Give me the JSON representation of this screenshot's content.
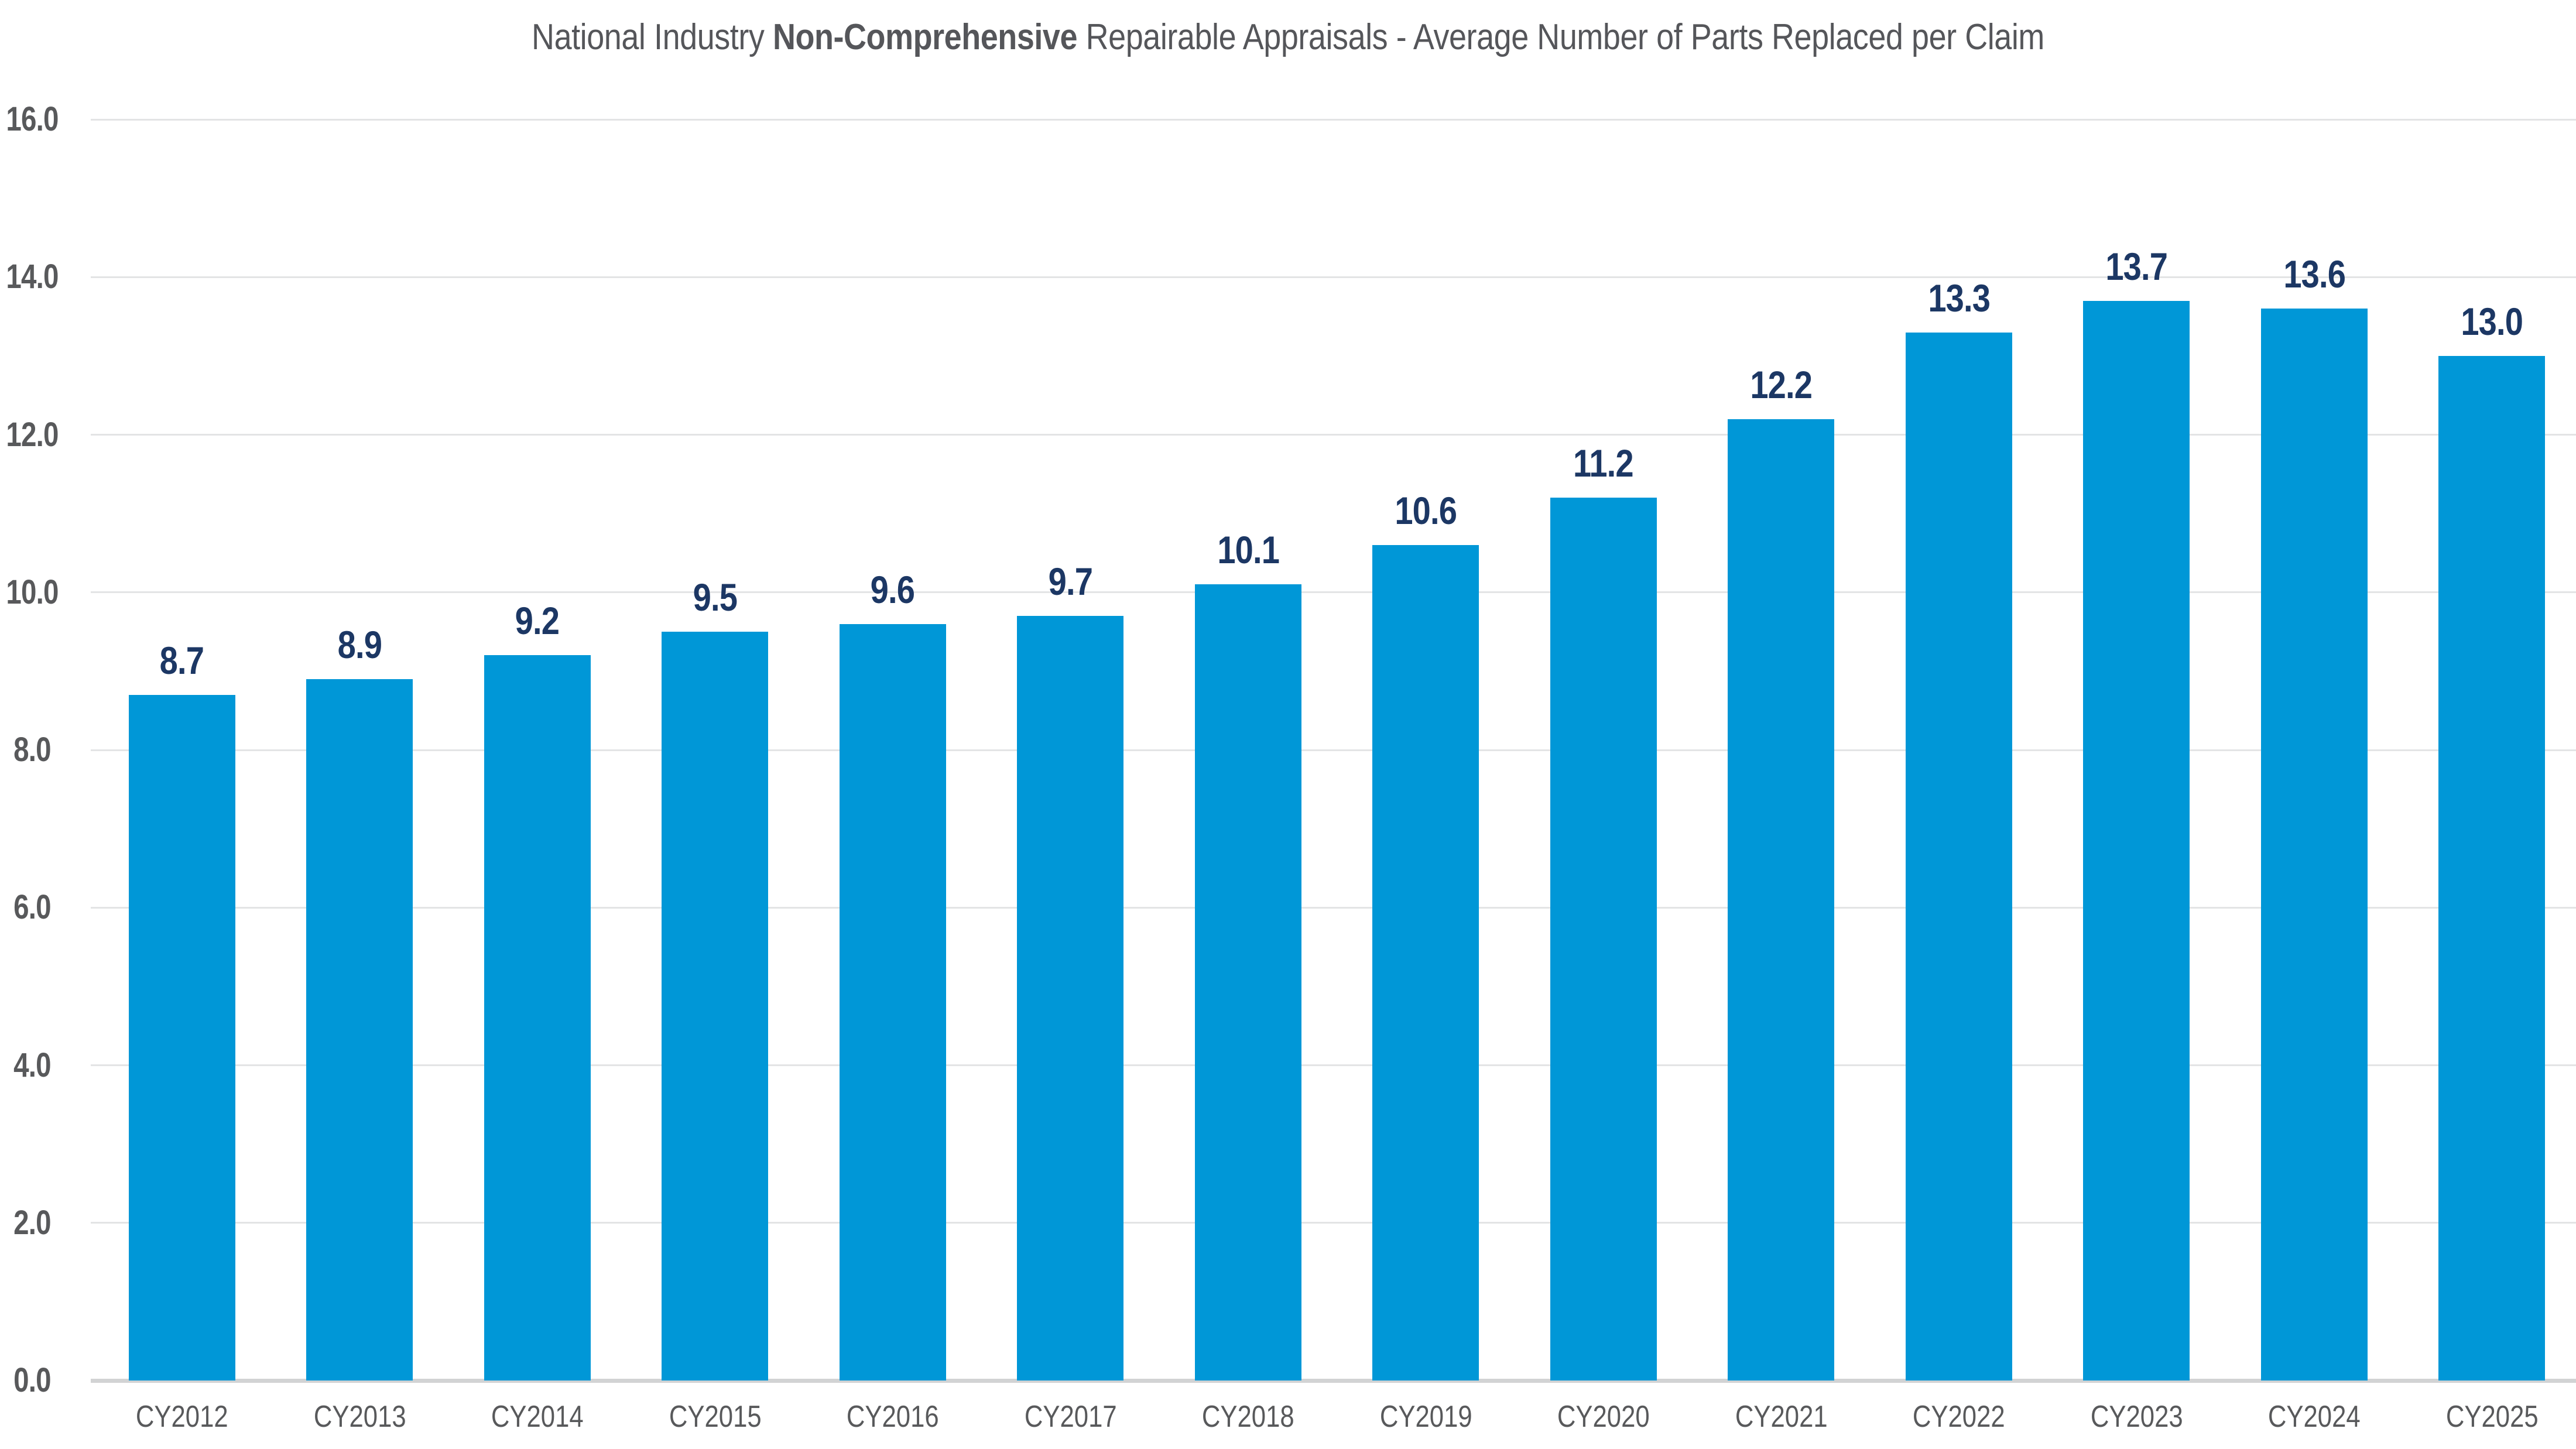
{
  "title": {
    "prefix": "National Industry ",
    "bold": "Non-Comprehensive",
    "suffix": " Repairable Appraisals - Average Number of Parts Replaced per Claim"
  },
  "chart_data": {
    "type": "bar",
    "title": "National Industry Non-Comprehensive Repairable Appraisals - Average Number of Parts Replaced per Claim",
    "categories": [
      "CY2012",
      "CY2013",
      "CY2014",
      "CY2015",
      "CY2016",
      "CY2017",
      "CY2018",
      "CY2019",
      "CY2020",
      "CY2021",
      "CY2022",
      "CY2023",
      "CY2024",
      "CY2025"
    ],
    "values": [
      8.7,
      8.9,
      9.2,
      9.5,
      9.6,
      9.7,
      10.1,
      10.6,
      11.2,
      12.2,
      13.3,
      13.7,
      13.6,
      13.0
    ],
    "value_labels": [
      "8.7",
      "8.9",
      "9.2",
      "9.5",
      "9.6",
      "9.7",
      "10.1",
      "10.6",
      "11.2",
      "12.2",
      "13.3",
      "13.7",
      "13.6",
      "13.0"
    ],
    "xlabel": "",
    "ylabel": "",
    "ylim": [
      0,
      16
    ],
    "ytick_step": 2,
    "ytick_labels": [
      "0.0",
      "2.0",
      "4.0",
      "6.0",
      "8.0",
      "10.0",
      "12.0",
      "14.0",
      "16.0"
    ],
    "grid": true,
    "legend": null,
    "colors": {
      "bar": "#0097D7",
      "value_label": "#1C3764",
      "axis_text": "#58595B",
      "title_text": "#55565A",
      "gridline": "#E3E4E5",
      "baseline": "#D2D3D4",
      "background": "#FFFFFF"
    }
  }
}
